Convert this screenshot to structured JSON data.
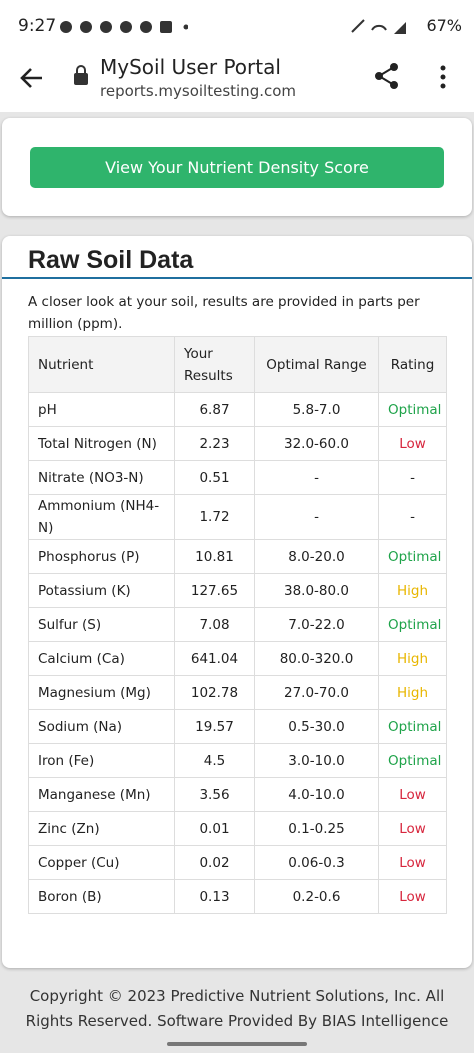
{
  "status_bar": {
    "time": "9:27",
    "battery": "67%"
  },
  "browser": {
    "title": "MySoil User Portal",
    "url": "reports.mysoiltesting.com"
  },
  "button": {
    "label": "View Your Nutrient Density Score"
  },
  "section": {
    "title": "Raw Soil Data",
    "description": "A closer look at your soil, results are provided in parts per million (ppm)."
  },
  "table": {
    "headers": [
      "Nutrient",
      "Your Results",
      "Optimal Range",
      "Rating"
    ],
    "rows": [
      {
        "nutrient": "pH",
        "result": "6.87",
        "optimal_range": "5.8-7.0",
        "rating": "Optimal",
        "rating_color": "#1fa34a"
      },
      {
        "nutrient": "Total Nitrogen (N)",
        "result": "2.23",
        "optimal_range": "32.0-60.0",
        "rating": "Low",
        "rating_color": "#d7263d"
      },
      {
        "nutrient": "Nitrate (NO3-N)",
        "result": "0.51",
        "optimal_range": "-",
        "rating": "-",
        "rating_color": "#222222"
      },
      {
        "nutrient": "Ammonium (NH4-N)",
        "result": "1.72",
        "optimal_range": "-",
        "rating": "-",
        "rating_color": "#222222"
      },
      {
        "nutrient": "Phosphorus (P)",
        "result": "10.81",
        "optimal_range": "8.0-20.0",
        "rating": "Optimal",
        "rating_color": "#1fa34a"
      },
      {
        "nutrient": "Potassium (K)",
        "result": "127.65",
        "optimal_range": "38.0-80.0",
        "rating": "High",
        "rating_color": "#e8b600"
      },
      {
        "nutrient": "Sulfur (S)",
        "result": "7.08",
        "optimal_range": "7.0-22.0",
        "rating": "Optimal",
        "rating_color": "#1fa34a"
      },
      {
        "nutrient": "Calcium (Ca)",
        "result": "641.04",
        "optimal_range": "80.0-320.0",
        "rating": "High",
        "rating_color": "#e8b600"
      },
      {
        "nutrient": "Magnesium (Mg)",
        "result": "102.78",
        "optimal_range": "27.0-70.0",
        "rating": "High",
        "rating_color": "#e8b600"
      },
      {
        "nutrient": "Sodium (Na)",
        "result": "19.57",
        "optimal_range": "0.5-30.0",
        "rating": "Optimal",
        "rating_color": "#1fa34a"
      },
      {
        "nutrient": "Iron (Fe)",
        "result": "4.5",
        "optimal_range": "3.0-10.0",
        "rating": "Optimal",
        "rating_color": "#1fa34a"
      },
      {
        "nutrient": "Manganese (Mn)",
        "result": "3.56",
        "optimal_range": "4.0-10.0",
        "rating": "Low",
        "rating_color": "#d7263d"
      },
      {
        "nutrient": "Zinc (Zn)",
        "result": "0.01",
        "optimal_range": "0.1-0.25",
        "rating": "Low",
        "rating_color": "#d7263d"
      },
      {
        "nutrient": "Copper (Cu)",
        "result": "0.02",
        "optimal_range": "0.06-0.3",
        "rating": "Low",
        "rating_color": "#d7263d"
      },
      {
        "nutrient": "Boron (B)",
        "result": "0.13",
        "optimal_range": "0.2-0.6",
        "rating": "Low",
        "rating_color": "#d7263d"
      }
    ]
  },
  "footer": {
    "text": "Copyright © 2023 Predictive Nutrient Solutions, Inc. All Rights Reserved. Software Provided By BIAS Intelligence"
  }
}
